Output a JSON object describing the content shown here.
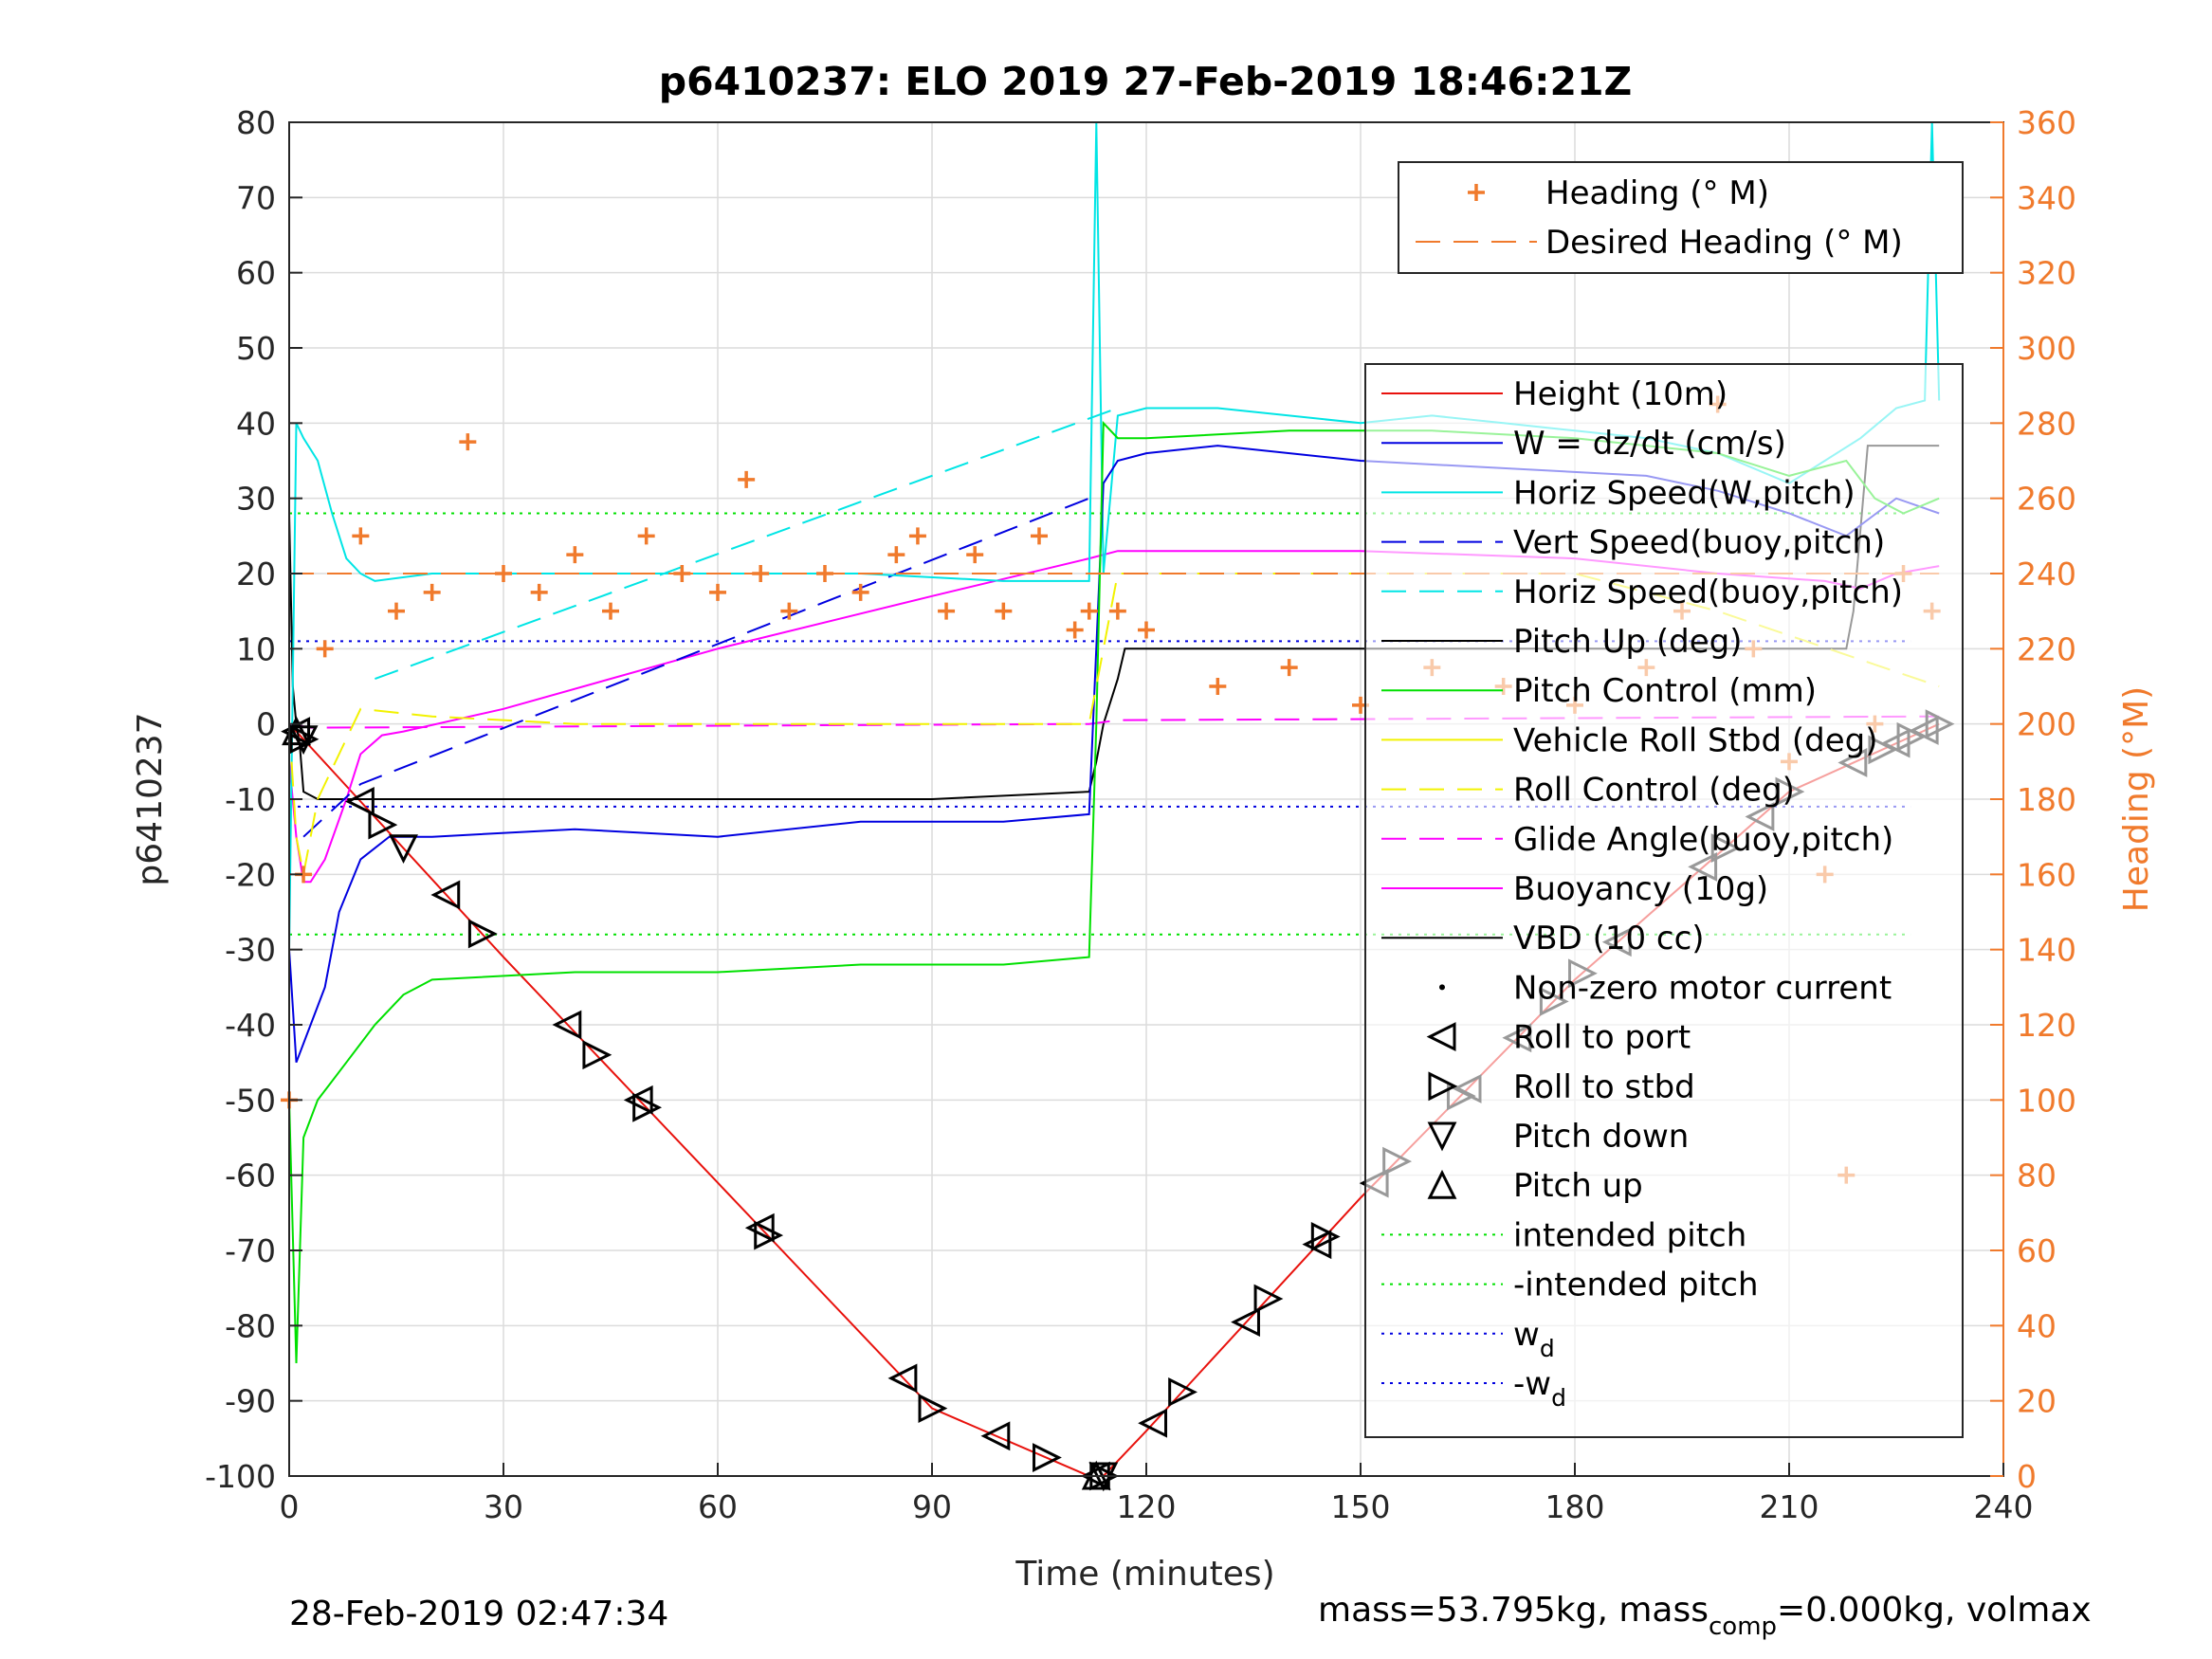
{
  "chart_data": {
    "type": "line",
    "title": "p6410237: ELO 2019 27-Feb-2019 18:46:21Z",
    "xlabel": "Time (minutes)",
    "ylabel": "p6410237",
    "ylabel_right": "Heading (°M)",
    "xlim": [
      0,
      240
    ],
    "ylim": [
      -100,
      80
    ],
    "ylim_right": [
      0,
      360
    ],
    "x_ticks": [
      "0",
      "30",
      "60",
      "90",
      "120",
      "150",
      "180",
      "210",
      "240"
    ],
    "y_ticks": [
      "80",
      "70",
      "60",
      "50",
      "40",
      "30",
      "20",
      "10",
      "0",
      "-10",
      "-20",
      "-30",
      "-40",
      "-50",
      "-60",
      "-70",
      "-80",
      "-90",
      "-100"
    ],
    "y_ticks_right": [
      "360",
      "340",
      "320",
      "300",
      "280",
      "260",
      "240",
      "220",
      "200",
      "180",
      "160",
      "140",
      "120",
      "100",
      "80",
      "60",
      "40",
      "20",
      "0"
    ],
    "grid": true,
    "legend_top": [
      {
        "label": "Heading (° M)",
        "color": "#f07a2c",
        "style": "plus"
      },
      {
        "label": "Desired Heading (° M)",
        "color": "#f07a2c",
        "style": "dash"
      }
    ],
    "legend_main": [
      {
        "label": "Height (10m)",
        "color": "#e8120d",
        "style": "solid"
      },
      {
        "label": "W = dz/dt (cm/s)",
        "color": "#0000e0",
        "style": "solid"
      },
      {
        "label": "Horiz Speed(W,pitch)",
        "color": "#00e5e5",
        "style": "solid"
      },
      {
        "label": "Vert Speed(buoy,pitch)",
        "color": "#0000e0",
        "style": "dash"
      },
      {
        "label": "Horiz Speed(buoy,pitch)",
        "color": "#00e5e5",
        "style": "dash"
      },
      {
        "label": "Pitch Up (deg)",
        "color": "#000000",
        "style": "solid"
      },
      {
        "label": "Pitch Control (mm)",
        "color": "#00e000",
        "style": "solid"
      },
      {
        "label": "Vehicle Roll Stbd (deg)",
        "color": "#f2f200",
        "style": "solid"
      },
      {
        "label": "Roll Control (deg)",
        "color": "#f2f200",
        "style": "dash"
      },
      {
        "label": "Glide Angle(buoy,pitch)",
        "color": "#ff00ff",
        "style": "dash"
      },
      {
        "label": "Buoyancy (10g)",
        "color": "#ff00ff",
        "style": "solid"
      },
      {
        "label": "VBD (10 cc)",
        "color": "#000000",
        "style": "solid"
      },
      {
        "label": "Non-zero motor current",
        "color": "#000000",
        "style": "dot"
      },
      {
        "label": "Roll to port",
        "color": "#000000",
        "style": "tri-left"
      },
      {
        "label": "Roll to stbd",
        "color": "#000000",
        "style": "tri-right"
      },
      {
        "label": "Pitch down",
        "color": "#000000",
        "style": "tri-down"
      },
      {
        "label": "Pitch up",
        "color": "#000000",
        "style": "tri-up"
      },
      {
        "label": "intended pitch",
        "color": "#00e000",
        "style": "dotted"
      },
      {
        "label": "-intended pitch",
        "color": "#00e000",
        "style": "dotted"
      },
      {
        "label": "w",
        "sub": "d",
        "color": "#0000e0",
        "style": "dotted"
      },
      {
        "label": "-w",
        "sub": "d",
        "color": "#0000e0",
        "style": "dotted"
      }
    ],
    "series": [
      {
        "name": "Height (10m)",
        "color": "#e8120d",
        "axis": "left",
        "x": [
          0,
          1,
          30,
          60,
          90,
          112,
          114,
          120,
          150,
          180,
          210,
          231
        ],
        "y": [
          0,
          -1,
          -31,
          -61,
          -91,
          -100,
          -100,
          -94,
          -63,
          -34,
          -9,
          0
        ]
      },
      {
        "name": "Pitch Up (deg)",
        "color": "#000000",
        "axis": "left",
        "x": [
          0,
          0.5,
          1,
          1.5,
          2,
          4,
          30,
          60,
          90,
          112,
          113,
          114,
          116,
          117,
          130,
          160,
          200,
          218,
          219,
          221,
          231
        ],
        "y": [
          28,
          5,
          0,
          -3,
          -9,
          -10,
          -10,
          -10,
          -10,
          -9,
          -5,
          0,
          6,
          10,
          10,
          10,
          10,
          10,
          15,
          37,
          37
        ]
      },
      {
        "name": "Buoyancy (10g)",
        "color": "#ff00ff",
        "axis": "left",
        "x": [
          0,
          1,
          2,
          3,
          5,
          8,
          10,
          13,
          16,
          30,
          60,
          90,
          112,
          116,
          150,
          180,
          200,
          215,
          220,
          225,
          231
        ],
        "y": [
          -5,
          -15,
          -21,
          -21,
          -18,
          -10,
          -4,
          -1.5,
          -1,
          2,
          10,
          17,
          22,
          23,
          23,
          22,
          20,
          19,
          18,
          20,
          21
        ]
      },
      {
        "name": "Glide Angle(buoy,pitch)",
        "color": "#ff00ff",
        "axis": "left",
        "x": [
          0,
          3,
          112,
          116,
          231
        ],
        "y": [
          0,
          -0.5,
          0,
          0.5,
          1
        ]
      },
      {
        "name": "Vert Speed(buoy,pitch)",
        "color": "#0000e0",
        "axis": "left",
        "x": [
          2,
          10,
          112
        ],
        "y": [
          -15,
          -8,
          30
        ]
      },
      {
        "name": "Horiz Speed(buoy,pitch)",
        "color": "#00e5e5",
        "axis": "left",
        "x": [
          12,
          116
        ],
        "y": [
          6,
          42
        ]
      },
      {
        "name": "Horiz Speed(W,pitch)",
        "color": "#00e5e5",
        "axis": "left",
        "x": [
          0,
          1,
          2,
          4,
          6,
          8,
          10,
          12,
          20,
          40,
          60,
          80,
          100,
          112,
          113,
          114,
          116,
          120,
          130,
          150,
          160,
          170,
          180,
          190,
          200,
          210,
          220,
          225,
          229,
          230,
          231
        ],
        "y": [
          -30,
          40,
          38,
          35,
          28,
          22,
          20,
          19,
          20,
          20,
          20,
          20,
          19,
          19,
          80,
          20,
          41,
          42,
          42,
          40,
          41,
          40,
          39,
          38,
          36,
          32,
          38,
          42,
          43,
          80,
          43
        ]
      },
      {
        "name": "W = dz/dt (cm/s)",
        "color": "#0000e0",
        "axis": "left",
        "x": [
          0,
          1,
          3,
          5,
          7,
          10,
          14,
          20,
          40,
          60,
          80,
          100,
          112,
          114,
          116,
          120,
          130,
          150,
          170,
          190,
          200,
          210,
          218,
          225,
          231
        ],
        "y": [
          -30,
          -45,
          -40,
          -35,
          -25,
          -18,
          -15,
          -15,
          -14,
          -15,
          -13,
          -13,
          -12,
          32,
          35,
          36,
          37,
          35,
          34,
          33,
          31,
          28,
          25,
          30,
          28
        ]
      },
      {
        "name": "Pitch Control (mm)",
        "color": "#00e000",
        "axis": "left",
        "x": [
          0,
          1,
          2,
          4,
          8,
          12,
          16,
          20,
          40,
          60,
          80,
          100,
          112,
          113,
          114,
          116,
          120,
          140,
          160,
          180,
          200,
          210,
          218,
          222,
          226,
          231
        ],
        "y": [
          -50,
          -85,
          -55,
          -50,
          -45,
          -40,
          -36,
          -34,
          -33,
          -33,
          -32,
          -32,
          -31,
          0,
          40,
          38,
          38,
          39,
          39,
          38,
          36,
          33,
          35,
          30,
          28,
          30
        ]
      },
      {
        "name": "Roll Control (deg)",
        "color": "#f2f200",
        "axis": "left",
        "x": [
          0,
          1,
          2,
          4,
          10,
          20,
          40,
          60,
          80,
          100,
          112,
          116,
          150,
          180,
          200,
          231
        ],
        "y": [
          0,
          -15,
          -20,
          -10,
          2,
          1,
          0,
          0,
          0,
          0,
          0,
          20,
          20,
          20,
          15,
          5
        ]
      },
      {
        "name": "Heading (° M)",
        "color": "#f07a2c",
        "axis": "right",
        "x": [
          0,
          2,
          5,
          10,
          15,
          20,
          25,
          30,
          35,
          40,
          45,
          50,
          55,
          60,
          64,
          66,
          70,
          75,
          80,
          85,
          88,
          92,
          96,
          100,
          105,
          110,
          112,
          116,
          120,
          130,
          140,
          150,
          160,
          170,
          180,
          190,
          195,
          200,
          205,
          210,
          215,
          218,
          222,
          226,
          230
        ],
        "y": [
          100,
          160,
          220,
          250,
          230,
          235,
          275,
          240,
          235,
          245,
          230,
          250,
          240,
          235,
          265,
          240,
          230,
          240,
          235,
          245,
          250,
          230,
          245,
          230,
          250,
          225,
          230,
          230,
          225,
          210,
          215,
          205,
          215,
          210,
          205,
          215,
          230,
          285,
          220,
          190,
          160,
          80,
          200,
          240,
          230
        ]
      },
      {
        "name": "Desired Heading (° M)",
        "color": "#f07a2c",
        "axis": "right",
        "x": [
          0,
          231
        ],
        "y": [
          240,
          240
        ]
      }
    ],
    "reference_lines": [
      {
        "label": "intended pitch",
        "y": 28,
        "color": "#00e000"
      },
      {
        "label": "-intended pitch",
        "y": -28,
        "color": "#00e000"
      },
      {
        "label": "w_d",
        "y": 11,
        "color": "#0000e0"
      },
      {
        "label": "-w_d",
        "y": -11,
        "color": "#0000e0"
      }
    ],
    "markers": {
      "roll_to_port_x": [
        1,
        10,
        22,
        39,
        49,
        66,
        86,
        99,
        113,
        121,
        134,
        144,
        152,
        165,
        172,
        186,
        198,
        206,
        219,
        225,
        229
      ],
      "roll_to_stbd_x": [
        2,
        13,
        27,
        43,
        50,
        67,
        90,
        106,
        114,
        125,
        137,
        145,
        155,
        164,
        177,
        181,
        201,
        210,
        223,
        227,
        231
      ],
      "pitch_down_x": [
        2,
        16,
        114
      ],
      "pitch_up_x": [
        1,
        113
      ]
    }
  },
  "footer": {
    "timestamp": "28-Feb-2019 02:47:34",
    "mass_text": "mass=53.795kg, mass",
    "mass_sub": "comp",
    "mass_rest": "=0.000kg, volmax"
  }
}
